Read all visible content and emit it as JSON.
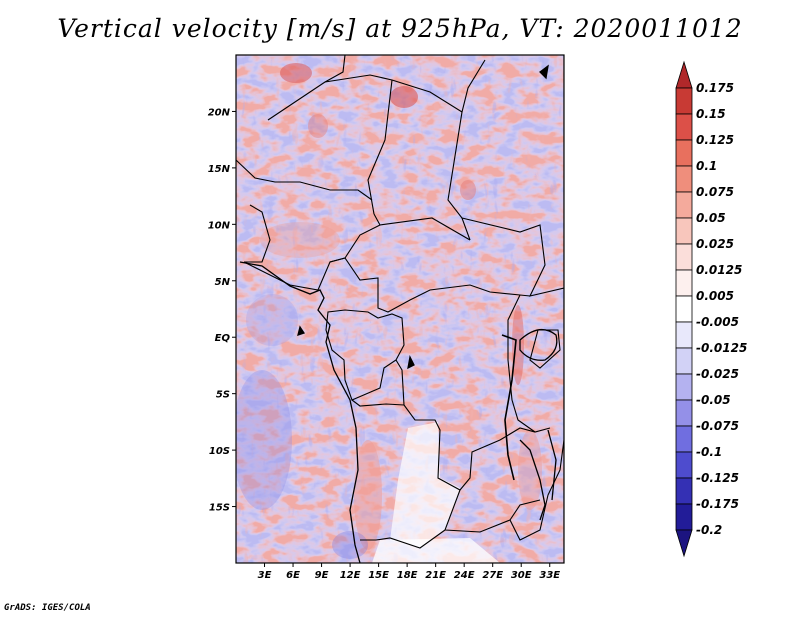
{
  "title": "Vertical velocity [m/s] at 925hPa, VT: 2020011012",
  "credit": "GrADS: IGES/COLA",
  "map": {
    "lon_range": [
      0,
      34.5
    ],
    "lat_range": [
      -20,
      25
    ],
    "lat_labels": [
      "20N",
      "15N",
      "10N",
      "5N",
      "EQ",
      "5S",
      "10S",
      "15S"
    ],
    "lat_values": [
      20,
      15,
      10,
      5,
      0,
      -5,
      -10,
      -15
    ],
    "lon_labels": [
      "3E",
      "6E",
      "9E",
      "12E",
      "15E",
      "18E",
      "21E",
      "24E",
      "27E",
      "30E",
      "33E"
    ],
    "lon_values": [
      3,
      6,
      9,
      12,
      15,
      18,
      21,
      24,
      27,
      30,
      33
    ]
  },
  "colorbar": {
    "levels": [
      "0.175",
      "0.15",
      "0.125",
      "0.1",
      "0.075",
      "0.05",
      "0.025",
      "0.0125",
      "0.005",
      "-0.005",
      "-0.0125",
      "-0.025",
      "-0.05",
      "-0.075",
      "-0.1",
      "-0.125",
      "-0.175",
      "-0.2"
    ],
    "top_arrow_color": "#b0282a",
    "bottom_arrow_color": "#1c1480",
    "colors": [
      "#b0282a",
      "#c83a34",
      "#dc5048",
      "#e8705e",
      "#ef8e7c",
      "#f4aa9c",
      "#f8c6bc",
      "#fbdeda",
      "#fdf0ee",
      "#ffffff",
      "#e8e8fb",
      "#d2d2f6",
      "#b4b2f0",
      "#9490e8",
      "#706ee0",
      "#4e4cce",
      "#3430b4",
      "#221c98",
      "#1c1480"
    ]
  }
}
